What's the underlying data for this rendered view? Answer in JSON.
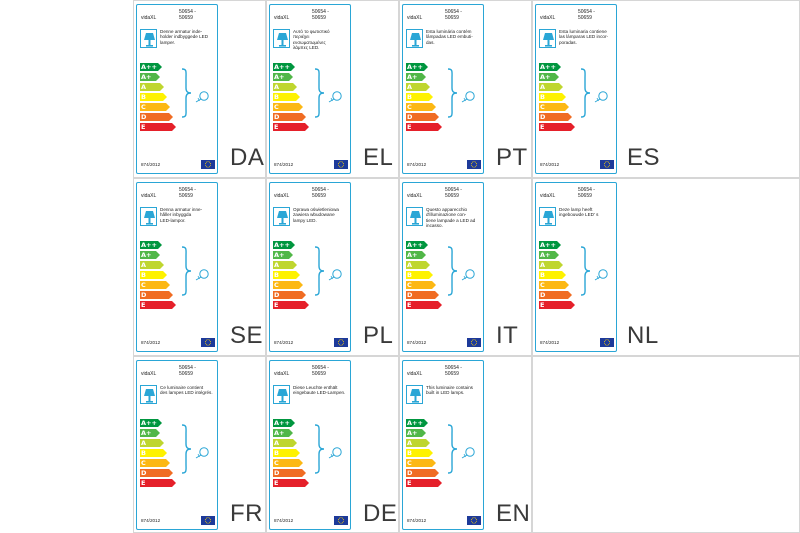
{
  "colors": {
    "border": "#2aa6d6",
    "eu_flag": "#1d3a9a",
    "classes": [
      "#00963f",
      "#51b748",
      "#bfd62f",
      "#fef200",
      "#fcb814",
      "#f06c23",
      "#e5202a"
    ]
  },
  "class_labels": [
    "A++",
    "A+",
    "A",
    "B",
    "C",
    "D",
    "E"
  ],
  "icons": {
    "lamp": "lamp-icon",
    "bulb": "bulb-icon",
    "brace": "brace-icon",
    "eu_flag": "eu-flag-icon"
  },
  "labels": [
    {
      "brand": "vidaXL",
      "code": "50654 -\n50659",
      "desc": "Denne armatur inde-\nholder indbyggede LED\nlamper.",
      "regulation": "874/2012",
      "lang": "DA"
    },
    {
      "brand": "vidaXL",
      "code": "50654 -\n50659",
      "desc": "Αυτό το φωτιστικό\nπεριέχει\nενσωματωμένες\nλάμπες LED.",
      "regulation": "874/2012",
      "lang": "EL"
    },
    {
      "brand": "vidaXL",
      "code": "50654 -\n50659",
      "desc": "Esta luminária contém\nlâmpadas LED embuti-\ndas.",
      "regulation": "874/2012",
      "lang": "PT"
    },
    {
      "brand": "vidaXL",
      "code": "50654 -\n50659",
      "desc": "Esta luminaria contiene\nlas lámparas LED incor-\nporadas.",
      "regulation": "874/2012",
      "lang": "ES"
    },
    {
      "brand": "vidaXL",
      "code": "50654 -\n50659",
      "desc": "Denna armatur inne-\nhåller inbyggda\nLED-lampor.",
      "regulation": "874/2012",
      "lang": "SE"
    },
    {
      "brand": "vidaXL",
      "code": "50654 -\n50659",
      "desc": "Oprawa oświetleniowa\nzawiera wbudowane\nlampy LED.",
      "regulation": "874/2012",
      "lang": "PL"
    },
    {
      "brand": "vidaXL",
      "code": "50654 -\n50659",
      "desc": "Questo apparecchio\nd'illuminazione con-\ntiene lampade a LED ad\nincasso.",
      "regulation": "874/2012",
      "lang": "IT"
    },
    {
      "brand": "vidaXL",
      "code": "50654 -\n50659",
      "desc": "Deze lamp heeft\ningebouwde LED'  s",
      "regulation": "874/2012",
      "lang": "NL"
    },
    {
      "brand": "vidaXL",
      "code": "50654 -\n50659",
      "desc": "Ce luminaire contient\ndes lampes LED intégrés.",
      "regulation": "874/2012",
      "lang": "FR"
    },
    {
      "brand": "vidaXL",
      "code": "50654 -\n50659",
      "desc": "Diese Leuchte enthält\neingebaute LED-Lampen.",
      "regulation": "874/2012",
      "lang": "DE"
    },
    {
      "brand": "vidaXL",
      "code": "50654 -\n50659",
      "desc": "This luminaire contains\nbuilt in LED lamps.",
      "regulation": "874/2012",
      "lang": "EN"
    }
  ]
}
